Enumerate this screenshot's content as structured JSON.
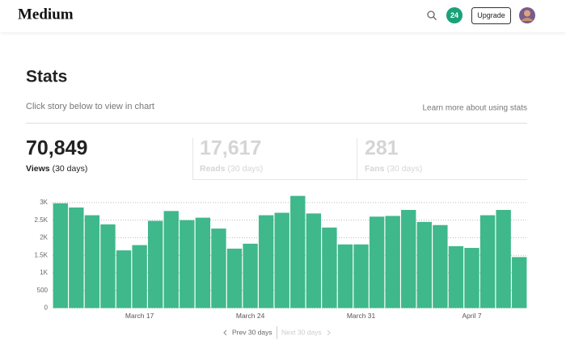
{
  "header": {
    "logo": "Medium",
    "badge": "24",
    "button": "Upgrade"
  },
  "page": {
    "title": "Stats",
    "hint": "Click story below to view in chart",
    "link": "Learn more about using stats"
  },
  "stats": [
    {
      "value": "70,849",
      "label": "Views",
      "period": "(30 days)"
    },
    {
      "value": "17,617",
      "label": "Reads",
      "period": "(30 days)"
    },
    {
      "value": "281",
      "label": "Fans",
      "period": "(30 days)"
    }
  ],
  "chart_data": {
    "type": "bar",
    "color": "#3fb88b",
    "categories": [
      null,
      null,
      null,
      null,
      null,
      "March 17",
      null,
      null,
      null,
      null,
      null,
      null,
      "March 24",
      null,
      null,
      null,
      null,
      null,
      null,
      "March 31",
      null,
      null,
      null,
      null,
      null,
      null,
      "April 7",
      null,
      null,
      null
    ],
    "values": [
      2980,
      2860,
      2640,
      2380,
      1640,
      1790,
      2480,
      2760,
      2500,
      2570,
      2260,
      1690,
      1830,
      2640,
      2710,
      3190,
      2690,
      2290,
      1810,
      1810,
      2600,
      2620,
      2790,
      2450,
      2360,
      1760,
      1710,
      2640,
      2790,
      1450
    ],
    "ylim": [
      0,
      3250
    ],
    "yticks": [
      0,
      500,
      {
        "value": 1000,
        "label": "1K"
      },
      {
        "value": 1500,
        "label": "1.5K"
      },
      {
        "value": 2000,
        "label": "2K"
      },
      {
        "value": 2500,
        "label": "2.5K"
      },
      {
        "value": 3000,
        "label": "3K"
      }
    ],
    "grid": true
  },
  "pager": {
    "prev": "Prev 30 days",
    "next": "Next 30 days"
  }
}
